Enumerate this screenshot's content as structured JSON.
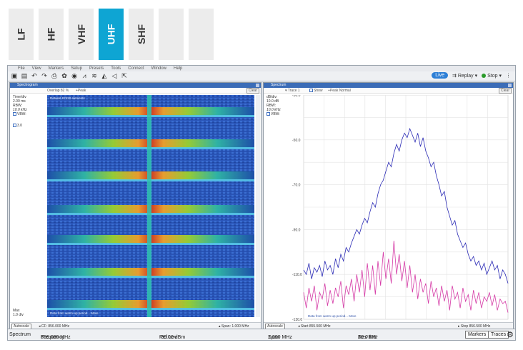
{
  "bands": [
    {
      "label": "LF",
      "active": false
    },
    {
      "label": "HF",
      "active": false
    },
    {
      "label": "VHF",
      "active": false
    },
    {
      "label": "UHF",
      "active": true
    },
    {
      "label": "SHF",
      "active": false
    },
    {
      "label": "",
      "active": false
    },
    {
      "label": "",
      "active": false
    }
  ],
  "menubar": [
    "File",
    "View",
    "Markers",
    "Setup",
    "Presets",
    "Tools",
    "Connect",
    "Window",
    "Help"
  ],
  "toolbar": {
    "icons": [
      "save-icon",
      "open-icon",
      "undo-icon",
      "redo-icon",
      "print-icon",
      "settings-icon",
      "camera-icon",
      "spectrum-icon",
      "waterfall-icon",
      "persistence-icon",
      "audio-icon",
      "export-icon"
    ],
    "live_label": "Live",
    "replay_label": "Replay",
    "stop_label": "Stop"
  },
  "spectrogram": {
    "title": "Spectrogram",
    "overlap": "Overlap 82 %",
    "peak": "+Peak",
    "clear": "Clear",
    "time_div_label": "Time/div",
    "time_div_value": "2.00 ms",
    "rbw_label": "RBW:",
    "rbw_value": "10.0 kHz",
    "vbw_label": "VBW:",
    "cb_value": "3.0",
    "max_label": "Max",
    "max_value": "1.0 div",
    "autoscale": "Autoscale",
    "cf_label": "CF:",
    "cf_value": "856.000 MHz",
    "span_label": "Span:",
    "span_value": "1.000 MHz",
    "overlay_top": "Dataset 67420 elements",
    "overlay_bottom": "Data from warm-up period... More"
  },
  "spectrum": {
    "title": "Spectrum",
    "trace": "Trace 1",
    "show": "Show",
    "mode": "+Peak Normal",
    "clear": "Clear",
    "db_div_label": "dB/div:",
    "db_div_value": "10.0 dB",
    "rbw_label": "RBW:",
    "rbw_value": "10.0 kHz",
    "vbw_label": "VBW:",
    "y_ticks": [
      "-30.0",
      "-50.0",
      "-70.0",
      "-90.0",
      "-110.0",
      "-130.0"
    ],
    "autoscale": "Autoscale",
    "start_label": "Start",
    "start_value": "855.500 MHz",
    "stop_label": "Stop",
    "stop_value": "856.500 MHz",
    "overlay": "Data from warm-up period... More"
  },
  "status": {
    "mode": "Spectrum",
    "frequency_label": "Frequency",
    "frequency_value": "856.000 MHz",
    "ref_label": "Ref Lev",
    "ref_value": "-30.00 dBm",
    "span_label": "Span",
    "span_value": "1.000 MHz",
    "rbw_label": "Res BW",
    "rbw_value": "10.0 kHz",
    "markers": "Markers",
    "traces": "Traces"
  },
  "chart_data": {
    "type": "line",
    "ylim": [
      -130,
      -30
    ],
    "x_start": "855.500 MHz",
    "x_stop": "856.500 MHz",
    "series": [
      {
        "color": "#2b2bb5",
        "values": [
          -108,
          -110,
          -105,
          -112,
          -107,
          -109,
          -106,
          -111,
          -104,
          -108,
          -106,
          -110,
          -103,
          -107,
          -101,
          -104,
          -98,
          -100,
          -96,
          -93,
          -90,
          -92,
          -88,
          -85,
          -87,
          -82,
          -78,
          -80,
          -74,
          -70,
          -68,
          -64,
          -60,
          -62,
          -56,
          -52,
          -55,
          -50,
          -47,
          -49,
          -45,
          -48,
          -51,
          -47,
          -53,
          -49,
          -55,
          -58,
          -62,
          -60,
          -66,
          -70,
          -75,
          -73,
          -80,
          -84,
          -88,
          -86,
          -92,
          -95,
          -98,
          -96,
          -101,
          -104,
          -102,
          -106,
          -104,
          -108,
          -105,
          -110,
          -107,
          -104,
          -108,
          -106,
          -112,
          -108,
          -110,
          -114
        ]
      },
      {
        "color": "#d53aa6",
        "values": [
          -118,
          -125,
          -116,
          -122,
          -115,
          -126,
          -118,
          -121,
          -114,
          -124,
          -117,
          -123,
          -116,
          -120,
          -113,
          -125,
          -115,
          -119,
          -112,
          -122,
          -110,
          -118,
          -108,
          -120,
          -105,
          -117,
          -106,
          -119,
          -104,
          -115,
          -100,
          -112,
          -103,
          -114,
          -95,
          -110,
          -101,
          -113,
          -104,
          -116,
          -106,
          -118,
          -110,
          -121,
          -112,
          -118,
          -114,
          -123,
          -113,
          -120,
          -116,
          -124,
          -115,
          -122,
          -117,
          -126,
          -115,
          -121,
          -118,
          -125,
          -116,
          -122,
          -119,
          -126,
          -117,
          -123,
          -118,
          -125,
          -120,
          -122,
          -118,
          -124,
          -119,
          -126,
          -121,
          -123,
          -122,
          -127
        ]
      }
    ]
  }
}
